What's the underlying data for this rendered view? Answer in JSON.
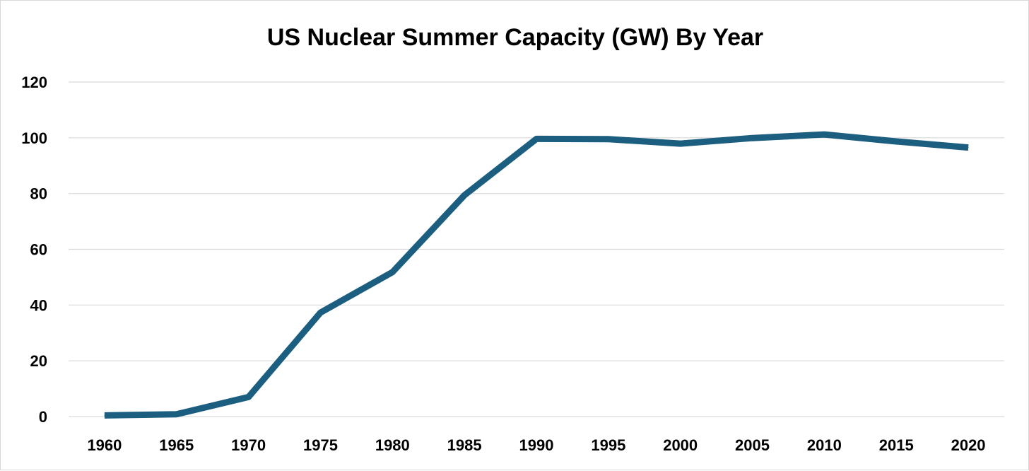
{
  "chart_data": {
    "type": "line",
    "title": "US Nuclear Summer Capacity (GW) By Year",
    "xlabel": "",
    "ylabel": "",
    "categories": [
      "1960",
      "1965",
      "1970",
      "1975",
      "1980",
      "1985",
      "1990",
      "1995",
      "2000",
      "2005",
      "2010",
      "2015",
      "2020"
    ],
    "series": [
      {
        "name": "US Nuclear Summer Capacity (GW)",
        "color": "#1b5e80",
        "values": [
          0.4,
          0.8,
          7.0,
          37.3,
          51.8,
          79.4,
          99.6,
          99.5,
          97.9,
          99.9,
          101.2,
          98.7,
          96.5
        ]
      }
    ],
    "ylim": [
      0,
      120
    ],
    "yticks": [
      0,
      20,
      40,
      60,
      80,
      100,
      120
    ],
    "grid": true,
    "legend": "none"
  }
}
